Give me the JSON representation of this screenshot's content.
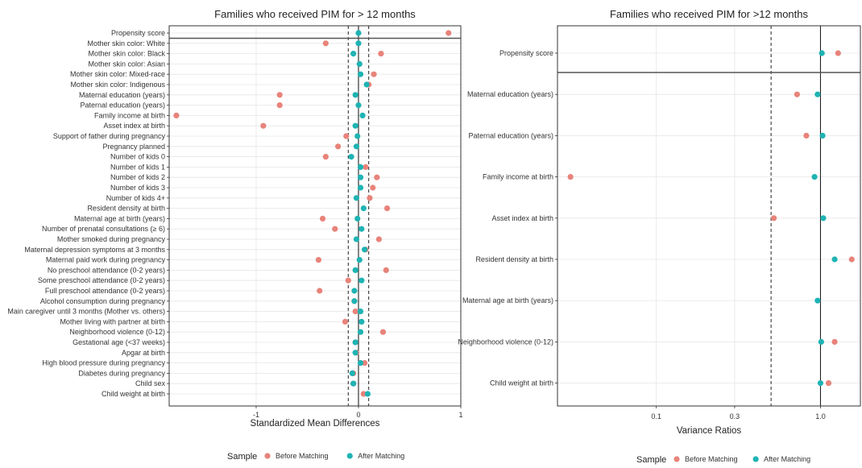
{
  "chart_data": [
    {
      "type": "scatter",
      "title": "Families who received PIM for > 12 months",
      "xlabel": "Standardized Mean Differences",
      "xlim": [
        -1.85,
        1.0
      ],
      "xticks": [
        {
          "v": -1,
          "label": "-1"
        },
        {
          "v": 0,
          "label": "0"
        },
        {
          "v": 1,
          "label": "1"
        }
      ],
      "vlines": {
        "solid": [
          0
        ],
        "dashed": [
          -0.1,
          0.1
        ]
      },
      "grid": true,
      "categories": [
        "Propensity score",
        "Mother skin color: White",
        "Mother skin color: Black",
        "Mother skin color: Asian",
        "Mother skin color: Mixed-race",
        "Mother skin color: Indigenous",
        "Maternal education (years)",
        "Paternal education (years)",
        "Family income at birth",
        "Asset index at birth",
        "Support of father during pregnancy",
        "Pregnancy planned",
        "Number of kids 0",
        "Number of kids 1",
        "Number of kids 2",
        "Number of kids 3",
        "Number of kids 4+",
        "Resident density at birth",
        "Maternal age at birth (years)",
        "Number of prenatal consultations (≥ 6)",
        "Mother smoked during pregnancy",
        "Maternal depression symptoms at 3 months",
        "Maternal paid work during pregnancy",
        "No preschool attendance (0-2 years)",
        "Some preschool attendance (0-2 years)",
        "Full preschool attendance (0-2 years)",
        "Alcohol consumption during pregnancy",
        "Main caregiver until 3 months (Mother vs. others)",
        "Mother living with partner at birth",
        "Neighborhood violence (0-12)",
        "Gestational age (<37 weeks)",
        "Apgar at birth",
        "High blood pressure during pregnancy",
        "Diabetes during pregnancy",
        "Child sex",
        "Child weight at birth"
      ],
      "separator_after": 0,
      "series": [
        {
          "name": "Before Matching",
          "color": "#E8837A",
          "values": [
            0.88,
            -0.32,
            0.22,
            null,
            0.15,
            0.1,
            -0.77,
            -0.77,
            -1.78,
            -0.93,
            -0.12,
            -0.2,
            -0.32,
            0.07,
            0.18,
            0.14,
            0.11,
            0.28,
            -0.35,
            -0.23,
            0.2,
            0.07,
            -0.39,
            0.27,
            -0.1,
            -0.38,
            -0.04,
            -0.03,
            -0.13,
            0.24,
            -0.03,
            -0.02,
            0.06,
            -0.05,
            -0.05,
            0.05
          ]
        },
        {
          "name": "After Matching",
          "color": "#1FB3B3",
          "values": [
            0.0,
            0.0,
            -0.05,
            0.01,
            0.02,
            0.08,
            -0.03,
            0.0,
            0.04,
            -0.03,
            -0.01,
            -0.02,
            -0.07,
            0.02,
            0.02,
            0.02,
            -0.02,
            0.05,
            -0.01,
            0.03,
            -0.02,
            0.06,
            0.01,
            -0.03,
            0.03,
            -0.04,
            -0.04,
            0.02,
            0.03,
            0.02,
            -0.03,
            -0.03,
            0.02,
            -0.06,
            -0.05,
            0.09
          ]
        }
      ]
    },
    {
      "type": "scatter",
      "title": "Families who received PIM for >12 months",
      "xlabel": "Variance Ratios",
      "xscale": "log",
      "xlim": [
        0.025,
        1.75
      ],
      "xticks": [
        {
          "v": 0.1,
          "label": "0.1"
        },
        {
          "v": 0.3,
          "label": "0.3"
        },
        {
          "v": 1.0,
          "label": "1.0"
        }
      ],
      "vlines": {
        "solid": [
          1.0
        ],
        "dashed": [
          0.5,
          2.0
        ]
      },
      "grid": true,
      "categories": [
        "Propensity score",
        "Maternal education (years)",
        "Paternal education (years)",
        "Family income at birth",
        "Asset index at birth",
        "Resident density at birth",
        "Maternal age at birth (years)",
        "Neighborhood violence (0-12)",
        "Child weight at birth"
      ],
      "separator_after": 0,
      "series": [
        {
          "name": "Before Matching",
          "color": "#E8837A",
          "values": [
            1.28,
            0.72,
            0.82,
            0.03,
            0.52,
            1.55,
            null,
            1.22,
            1.12
          ]
        },
        {
          "name": "After Matching",
          "color": "#1FB3B3",
          "values": [
            1.02,
            0.96,
            1.03,
            0.92,
            1.04,
            1.22,
            0.96,
            1.01,
            1.0
          ]
        }
      ]
    }
  ],
  "legends": [
    {
      "title": "Sample",
      "items": [
        {
          "label": "Before Matching",
          "color": "#E8837A"
        },
        {
          "label": "After Matching",
          "color": "#1FB3B3"
        }
      ]
    },
    {
      "title": "Sample",
      "items": [
        {
          "label": "Before Matching",
          "color": "#E8837A"
        },
        {
          "label": "After Matching",
          "color": "#1FB3B3"
        }
      ]
    }
  ]
}
